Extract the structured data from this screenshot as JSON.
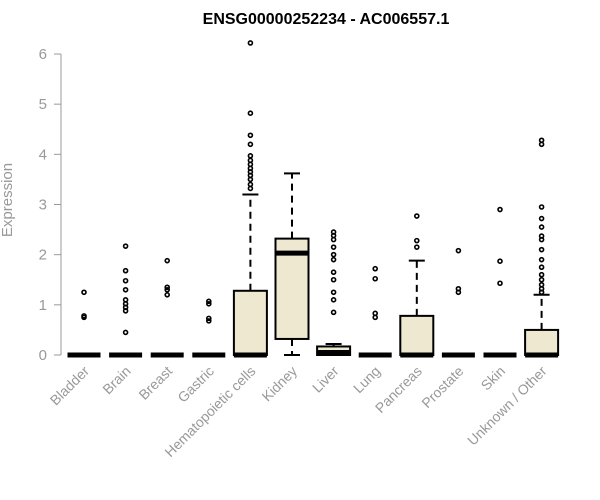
{
  "chart_data": {
    "type": "box",
    "title": "ENSG00000252234 - AC006557.1",
    "xlabel": "",
    "ylabel": "Expression",
    "ylim": [
      0,
      6.2
    ],
    "yticks": [
      0,
      1,
      2,
      3,
      4,
      5,
      6
    ],
    "box_fill": "#efe8d0",
    "categories": [
      "Bladder",
      "Brain",
      "Breast",
      "Gastric",
      "Hematopoietic cells",
      "Kidney",
      "Liver",
      "Lung",
      "Pancreas",
      "Prostate",
      "Skin",
      "Unknown / Other"
    ],
    "boxes": [
      {
        "q1": 0,
        "median": 0,
        "q3": 0,
        "whisker_low": 0,
        "whisker_high": 0,
        "outliers": [
          0.75,
          0.78,
          1.25
        ]
      },
      {
        "q1": 0,
        "median": 0,
        "q3": 0,
        "whisker_low": 0,
        "whisker_high": 0,
        "outliers": [
          0.45,
          0.88,
          0.95,
          1.02,
          1.1,
          1.3,
          1.48,
          1.68,
          2.17
        ]
      },
      {
        "q1": 0,
        "median": 0,
        "q3": 0,
        "whisker_low": 0,
        "whisker_high": 0,
        "outliers": [
          1.2,
          1.3,
          1.35,
          1.88
        ]
      },
      {
        "q1": 0,
        "median": 0,
        "q3": 0,
        "whisker_low": 0,
        "whisker_high": 0,
        "outliers": [
          0.68,
          0.73,
          1.02,
          1.07
        ]
      },
      {
        "q1": 0,
        "median": 0,
        "q3": 1.28,
        "whisker_low": 0,
        "whisker_high": 3.2,
        "outliers": [
          3.32,
          3.4,
          3.5,
          3.58,
          3.65,
          3.72,
          3.8,
          3.88,
          3.97,
          4.2,
          4.38,
          4.82,
          6.22
        ]
      },
      {
        "q1": 0.32,
        "median": 2.03,
        "q3": 2.32,
        "whisker_low": 0,
        "whisker_high": 3.62,
        "outliers": []
      },
      {
        "q1": 0,
        "median": 0.05,
        "q3": 0.17,
        "whisker_low": 0,
        "whisker_high": 0.22,
        "outliers": [
          0.85,
          1.1,
          1.25,
          1.5,
          1.65,
          1.9,
          2.0,
          2.15,
          2.3,
          2.38,
          2.45
        ]
      },
      {
        "q1": 0,
        "median": 0,
        "q3": 0,
        "whisker_low": 0,
        "whisker_high": 0,
        "outliers": [
          0.75,
          0.83,
          1.52,
          1.72
        ]
      },
      {
        "q1": 0,
        "median": 0,
        "q3": 0.78,
        "whisker_low": 0,
        "whisker_high": 1.88,
        "outliers": [
          2.15,
          2.28,
          2.77
        ]
      },
      {
        "q1": 0,
        "median": 0,
        "q3": 0,
        "whisker_low": 0,
        "whisker_high": 0,
        "outliers": [
          1.25,
          1.32,
          2.08
        ]
      },
      {
        "q1": 0,
        "median": 0,
        "q3": 0,
        "whisker_low": 0,
        "whisker_high": 0,
        "outliers": [
          1.43,
          1.87,
          2.9
        ]
      },
      {
        "q1": 0,
        "median": 0,
        "q3": 0.5,
        "whisker_low": 0,
        "whisker_high": 1.2,
        "outliers": [
          1.25,
          1.32,
          1.4,
          1.5,
          1.6,
          1.75,
          1.9,
          2.1,
          2.3,
          2.37,
          2.55,
          2.72,
          2.95,
          4.2,
          4.28
        ]
      }
    ]
  }
}
